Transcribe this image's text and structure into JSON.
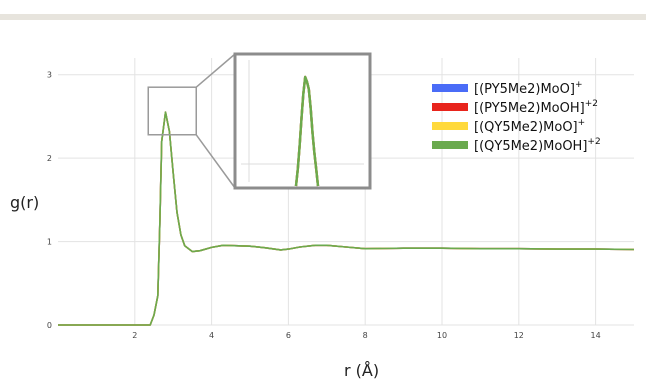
{
  "chart_data": {
    "type": "line",
    "title": "",
    "xlabel": "r (Å)",
    "ylabel": "g(r)",
    "xlim": [
      0,
      15
    ],
    "ylim": [
      0,
      3.2
    ],
    "x_ticks": [
      2,
      4,
      6,
      8,
      10,
      12,
      14
    ],
    "y_ticks": [
      0,
      1,
      2,
      3
    ],
    "grid": true,
    "legend_position": "top-right",
    "series": [
      {
        "name": "[(PY5Me2)MoO]",
        "sup": "+",
        "color": "#4a6cf7",
        "x": [
          0,
          2.4,
          2.5,
          2.6,
          2.65,
          2.7,
          2.8,
          2.9,
          3.0,
          3.1,
          3.2,
          3.3,
          3.5,
          3.7,
          4.0,
          4.3,
          4.6,
          5.0,
          5.4,
          5.8,
          6.0,
          6.3,
          6.7,
          7.0,
          7.5,
          8.0,
          9.0,
          10.0,
          11.0,
          12.0,
          13.0,
          14.0,
          15.0
        ],
        "y": [
          0,
          0,
          0.12,
          0.35,
          1.2,
          2.2,
          2.55,
          2.32,
          1.82,
          1.35,
          1.08,
          0.95,
          0.88,
          0.89,
          0.93,
          0.955,
          0.95,
          0.945,
          0.925,
          0.9,
          0.91,
          0.935,
          0.955,
          0.955,
          0.935,
          0.915,
          0.92,
          0.92,
          0.915,
          0.915,
          0.91,
          0.91,
          0.905
        ]
      },
      {
        "name": "[(PY5Me2)MoOH]",
        "sup": "+2",
        "color": "#e8241c",
        "x": [
          0,
          2.4,
          2.5,
          2.6,
          2.65,
          2.7,
          2.8,
          2.9,
          3.0,
          3.1,
          3.2,
          3.3,
          3.5,
          3.7,
          4.0,
          4.3,
          4.6,
          5.0,
          5.4,
          5.8,
          6.0,
          6.3,
          6.7,
          7.0,
          7.5,
          8.0,
          9.0,
          10.0,
          11.0,
          12.0,
          13.0,
          14.0,
          15.0
        ],
        "y": [
          0,
          0,
          0.12,
          0.35,
          1.2,
          2.2,
          2.55,
          2.32,
          1.82,
          1.35,
          1.08,
          0.95,
          0.88,
          0.89,
          0.93,
          0.955,
          0.95,
          0.945,
          0.925,
          0.9,
          0.91,
          0.935,
          0.955,
          0.955,
          0.935,
          0.915,
          0.92,
          0.92,
          0.915,
          0.915,
          0.91,
          0.91,
          0.905
        ]
      },
      {
        "name": "[(QY5Me2)MoO]",
        "sup": "+",
        "color": "#ffd93b",
        "x": [
          0,
          2.4,
          2.5,
          2.6,
          2.65,
          2.7,
          2.8,
          2.9,
          3.0,
          3.1,
          3.2,
          3.3,
          3.5,
          3.7,
          4.0,
          4.3,
          4.6,
          5.0,
          5.4,
          5.8,
          6.0,
          6.3,
          6.7,
          7.0,
          7.5,
          8.0,
          9.0,
          10.0,
          11.0,
          12.0,
          13.0,
          14.0,
          15.0
        ],
        "y": [
          0,
          0,
          0.12,
          0.35,
          1.2,
          2.2,
          2.55,
          2.32,
          1.82,
          1.35,
          1.08,
          0.95,
          0.88,
          0.89,
          0.93,
          0.955,
          0.95,
          0.945,
          0.925,
          0.9,
          0.91,
          0.935,
          0.955,
          0.955,
          0.935,
          0.915,
          0.92,
          0.92,
          0.915,
          0.915,
          0.91,
          0.91,
          0.905
        ]
      },
      {
        "name": "[(QY5Me2)MoOH]",
        "sup": "+2",
        "color": "#6aaa4e",
        "x": [
          0,
          2.4,
          2.5,
          2.6,
          2.65,
          2.7,
          2.8,
          2.9,
          3.0,
          3.1,
          3.2,
          3.3,
          3.5,
          3.7,
          4.0,
          4.3,
          4.6,
          5.0,
          5.4,
          5.8,
          6.0,
          6.3,
          6.7,
          7.0,
          7.5,
          8.0,
          9.0,
          10.0,
          11.0,
          12.0,
          13.0,
          14.0,
          15.0
        ],
        "y": [
          0,
          0,
          0.12,
          0.35,
          1.2,
          2.2,
          2.55,
          2.32,
          1.82,
          1.35,
          1.08,
          0.95,
          0.88,
          0.89,
          0.93,
          0.955,
          0.95,
          0.945,
          0.925,
          0.9,
          0.91,
          0.935,
          0.955,
          0.955,
          0.935,
          0.915,
          0.92,
          0.92,
          0.915,
          0.915,
          0.91,
          0.91,
          0.905
        ]
      }
    ],
    "inset": {
      "source_xlim": [
        2.35,
        3.6
      ],
      "source_ylim": [
        2.28,
        2.85
      ],
      "zoom_x": [
        2.72,
        2.73,
        2.74,
        2.75,
        2.76,
        2.77,
        2.78,
        2.79,
        2.8,
        2.81,
        2.82,
        2.83,
        2.84
      ],
      "zoom_y": [
        2.28,
        2.35,
        2.45,
        2.56,
        2.66,
        2.73,
        2.71,
        2.68,
        2.6,
        2.5,
        2.42,
        2.35,
        2.28
      ]
    }
  }
}
